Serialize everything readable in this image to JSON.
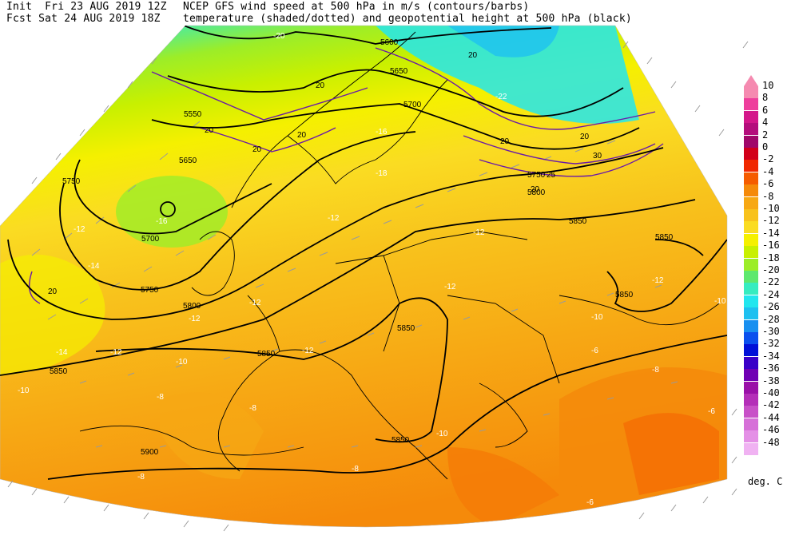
{
  "header": {
    "init_line": "Init  Fri 23 AUG 2019 12Z",
    "fcst_line": "Fcst Sat 24 AUG 2019 18Z",
    "title_line1": "NCEP GFS wind speed at 500 hPa in m/s (contours/barbs)",
    "title_line2": "temperature (shaded/dotted) and geopotential height at 500 hPa (black)"
  },
  "colorbar": {
    "units": "deg. C",
    "levels": [
      {
        "label": "10",
        "color": "#f58ab0"
      },
      {
        "label": "8",
        "color": "#ee3e9c"
      },
      {
        "label": "6",
        "color": "#d4178a"
      },
      {
        "label": "4",
        "color": "#b40e7c"
      },
      {
        "label": "2",
        "color": "#a0086a"
      },
      {
        "label": "0",
        "color": "#d2001a"
      },
      {
        "label": "-2",
        "color": "#f02800"
      },
      {
        "label": "-4",
        "color": "#f55c00"
      },
      {
        "label": "-6",
        "color": "#f58a0a"
      },
      {
        "label": "-8",
        "color": "#f7a814"
      },
      {
        "label": "-10",
        "color": "#f8c21c"
      },
      {
        "label": "-12",
        "color": "#fadc22"
      },
      {
        "label": "-14",
        "color": "#f5f000"
      },
      {
        "label": "-16",
        "color": "#c8f000"
      },
      {
        "label": "-18",
        "color": "#9ced28"
      },
      {
        "label": "-20",
        "color": "#5ee86e"
      },
      {
        "label": "-22",
        "color": "#36ecc0"
      },
      {
        "label": "-24",
        "color": "#22e6ee"
      },
      {
        "label": "-26",
        "color": "#1ec0f0"
      },
      {
        "label": "-28",
        "color": "#1890f0"
      },
      {
        "label": "-30",
        "color": "#0a50ee"
      },
      {
        "label": "-32",
        "color": "#0010d8"
      },
      {
        "label": "-34",
        "color": "#3a00c8"
      },
      {
        "label": "-36",
        "color": "#7000b4"
      },
      {
        "label": "-38",
        "color": "#9a10a8"
      },
      {
        "label": "-40",
        "color": "#b42eb8"
      },
      {
        "label": "-42",
        "color": "#c850c8"
      },
      {
        "label": "-44",
        "color": "#d670d8"
      },
      {
        "label": "-46",
        "color": "#e490e6"
      },
      {
        "label": "-48",
        "color": "#f0b2f2"
      }
    ]
  },
  "map": {
    "height_labels": [
      "5600",
      "5650",
      "5700",
      "5550",
      "5650",
      "5750",
      "5700",
      "5750",
      "5800",
      "5850",
      "5850",
      "5850",
      "5850",
      "5900",
      "5850",
      "5850",
      "5800",
      "5750",
      "5850"
    ],
    "temperature_labels": [
      "-20",
      "-18",
      "-16",
      "-14",
      "-12",
      "-12",
      "-12",
      "-12",
      "-12",
      "-12",
      "-14",
      "-12",
      "-10",
      "-10",
      "-8",
      "-8",
      "-8",
      "-8",
      "-8",
      "-6",
      "-6",
      "-6",
      "-22",
      "-16",
      "-12",
      "-12",
      "-10",
      "-10",
      "-10"
    ],
    "wind_labels": [
      "20",
      "20",
      "20",
      "20",
      "20",
      "20",
      "25",
      "20",
      "30",
      "20",
      "20"
    ]
  }
}
